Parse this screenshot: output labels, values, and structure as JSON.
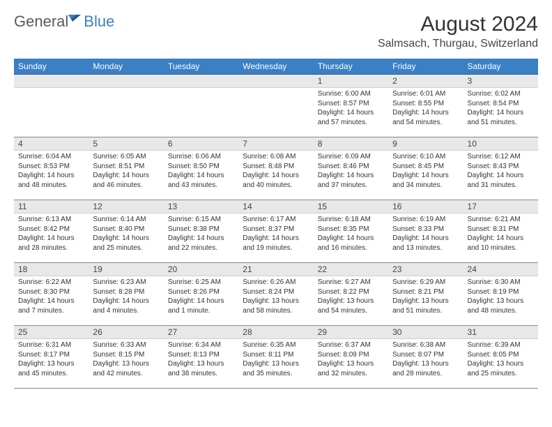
{
  "logo": {
    "general": "General",
    "blue": "Blue"
  },
  "title": "August 2024",
  "location": "Salmsach, Thurgau, Switzerland",
  "colors": {
    "header_bg": "#3b7fc4",
    "header_text": "#ffffff",
    "daynum_bg": "#e8e8e8",
    "grid_line": "#888888",
    "body_text": "#333333",
    "title_color": "#333333",
    "logo_gray": "#5a5a5a",
    "logo_blue": "#3b7fc4"
  },
  "typography": {
    "title_fontsize": 30,
    "location_fontsize": 16,
    "weekday_fontsize": 12,
    "daynum_fontsize": 12,
    "body_fontsize": 10
  },
  "weekdays": [
    "Sunday",
    "Monday",
    "Tuesday",
    "Wednesday",
    "Thursday",
    "Friday",
    "Saturday"
  ],
  "weeks": [
    [
      null,
      null,
      null,
      null,
      {
        "n": "1",
        "sunrise": "6:00 AM",
        "sunset": "8:57 PM",
        "daylight": "14 hours and 57 minutes."
      },
      {
        "n": "2",
        "sunrise": "6:01 AM",
        "sunset": "8:55 PM",
        "daylight": "14 hours and 54 minutes."
      },
      {
        "n": "3",
        "sunrise": "6:02 AM",
        "sunset": "8:54 PM",
        "daylight": "14 hours and 51 minutes."
      }
    ],
    [
      {
        "n": "4",
        "sunrise": "6:04 AM",
        "sunset": "8:53 PM",
        "daylight": "14 hours and 48 minutes."
      },
      {
        "n": "5",
        "sunrise": "6:05 AM",
        "sunset": "8:51 PM",
        "daylight": "14 hours and 46 minutes."
      },
      {
        "n": "6",
        "sunrise": "6:06 AM",
        "sunset": "8:50 PM",
        "daylight": "14 hours and 43 minutes."
      },
      {
        "n": "7",
        "sunrise": "6:08 AM",
        "sunset": "8:48 PM",
        "daylight": "14 hours and 40 minutes."
      },
      {
        "n": "8",
        "sunrise": "6:09 AM",
        "sunset": "8:46 PM",
        "daylight": "14 hours and 37 minutes."
      },
      {
        "n": "9",
        "sunrise": "6:10 AM",
        "sunset": "8:45 PM",
        "daylight": "14 hours and 34 minutes."
      },
      {
        "n": "10",
        "sunrise": "6:12 AM",
        "sunset": "8:43 PM",
        "daylight": "14 hours and 31 minutes."
      }
    ],
    [
      {
        "n": "11",
        "sunrise": "6:13 AM",
        "sunset": "8:42 PM",
        "daylight": "14 hours and 28 minutes."
      },
      {
        "n": "12",
        "sunrise": "6:14 AM",
        "sunset": "8:40 PM",
        "daylight": "14 hours and 25 minutes."
      },
      {
        "n": "13",
        "sunrise": "6:15 AM",
        "sunset": "8:38 PM",
        "daylight": "14 hours and 22 minutes."
      },
      {
        "n": "14",
        "sunrise": "6:17 AM",
        "sunset": "8:37 PM",
        "daylight": "14 hours and 19 minutes."
      },
      {
        "n": "15",
        "sunrise": "6:18 AM",
        "sunset": "8:35 PM",
        "daylight": "14 hours and 16 minutes."
      },
      {
        "n": "16",
        "sunrise": "6:19 AM",
        "sunset": "8:33 PM",
        "daylight": "14 hours and 13 minutes."
      },
      {
        "n": "17",
        "sunrise": "6:21 AM",
        "sunset": "8:31 PM",
        "daylight": "14 hours and 10 minutes."
      }
    ],
    [
      {
        "n": "18",
        "sunrise": "6:22 AM",
        "sunset": "8:30 PM",
        "daylight": "14 hours and 7 minutes."
      },
      {
        "n": "19",
        "sunrise": "6:23 AM",
        "sunset": "8:28 PM",
        "daylight": "14 hours and 4 minutes."
      },
      {
        "n": "20",
        "sunrise": "6:25 AM",
        "sunset": "8:26 PM",
        "daylight": "14 hours and 1 minute."
      },
      {
        "n": "21",
        "sunrise": "6:26 AM",
        "sunset": "8:24 PM",
        "daylight": "13 hours and 58 minutes."
      },
      {
        "n": "22",
        "sunrise": "6:27 AM",
        "sunset": "8:22 PM",
        "daylight": "13 hours and 54 minutes."
      },
      {
        "n": "23",
        "sunrise": "6:29 AM",
        "sunset": "8:21 PM",
        "daylight": "13 hours and 51 minutes."
      },
      {
        "n": "24",
        "sunrise": "6:30 AM",
        "sunset": "8:19 PM",
        "daylight": "13 hours and 48 minutes."
      }
    ],
    [
      {
        "n": "25",
        "sunrise": "6:31 AM",
        "sunset": "8:17 PM",
        "daylight": "13 hours and 45 minutes."
      },
      {
        "n": "26",
        "sunrise": "6:33 AM",
        "sunset": "8:15 PM",
        "daylight": "13 hours and 42 minutes."
      },
      {
        "n": "27",
        "sunrise": "6:34 AM",
        "sunset": "8:13 PM",
        "daylight": "13 hours and 38 minutes."
      },
      {
        "n": "28",
        "sunrise": "6:35 AM",
        "sunset": "8:11 PM",
        "daylight": "13 hours and 35 minutes."
      },
      {
        "n": "29",
        "sunrise": "6:37 AM",
        "sunset": "8:09 PM",
        "daylight": "13 hours and 32 minutes."
      },
      {
        "n": "30",
        "sunrise": "6:38 AM",
        "sunset": "8:07 PM",
        "daylight": "13 hours and 28 minutes."
      },
      {
        "n": "31",
        "sunrise": "6:39 AM",
        "sunset": "8:05 PM",
        "daylight": "13 hours and 25 minutes."
      }
    ]
  ],
  "labels": {
    "sunrise": "Sunrise:",
    "sunset": "Sunset:",
    "daylight": "Daylight:"
  }
}
